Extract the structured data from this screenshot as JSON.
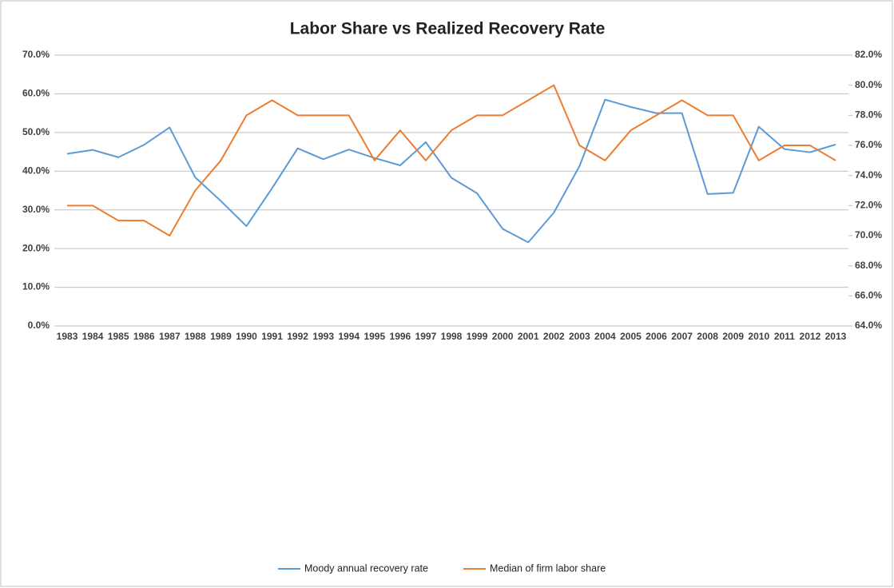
{
  "chart_data": {
    "type": "line",
    "title": "Labor Share vs Realized Recovery Rate",
    "categories": [
      "1983",
      "1984",
      "1985",
      "1986",
      "1987",
      "1988",
      "1989",
      "1990",
      "1991",
      "1992",
      "1993",
      "1994",
      "1995",
      "1996",
      "1997",
      "1998",
      "1999",
      "2000",
      "2001",
      "2002",
      "2003",
      "2004",
      "2005",
      "2006",
      "2007",
      "2008",
      "2009",
      "2010",
      "2011",
      "2012",
      "2013"
    ],
    "series": [
      {
        "name": "Moody annual recovery rate",
        "color": "#5b9bd5",
        "axis": "y",
        "values": [
          44.5,
          45.5,
          43.6,
          46.8,
          51.3,
          38.4,
          32.3,
          25.8,
          35.6,
          45.9,
          43.1,
          45.6,
          43.4,
          41.5,
          47.5,
          38.3,
          34.3,
          25.1,
          21.6,
          29.3,
          41.3,
          58.5,
          56.6,
          55.0,
          55.0,
          34.1,
          34.4,
          51.5,
          45.7,
          44.9,
          46.9
        ]
      },
      {
        "name": "Median of firm labor share",
        "color": "#ed7d31",
        "axis": "y2",
        "values": [
          72,
          72,
          71,
          71,
          70,
          73,
          75,
          78,
          79,
          78,
          78,
          78,
          75,
          77,
          75,
          77,
          78,
          78,
          79,
          80,
          76,
          75,
          77,
          78,
          79,
          78,
          78,
          75,
          76,
          76,
          75
        ]
      }
    ],
    "ylim": [
      0,
      70
    ],
    "yticks": [
      {
        "value": 0,
        "label": "0.0%"
      },
      {
        "value": 10,
        "label": "10.0%"
      },
      {
        "value": 20,
        "label": "20.0%"
      },
      {
        "value": 30,
        "label": "30.0%"
      },
      {
        "value": 40,
        "label": "40.0%"
      },
      {
        "value": 50,
        "label": "50.0%"
      },
      {
        "value": 60,
        "label": "60.0%"
      },
      {
        "value": 70,
        "label": "70.0%"
      }
    ],
    "y2lim": [
      64,
      82
    ],
    "y2ticks": [
      {
        "value": 64,
        "label": "64.0%"
      },
      {
        "value": 66,
        "label": "66.0%"
      },
      {
        "value": 68,
        "label": "68.0%"
      },
      {
        "value": 70,
        "label": "70.0%"
      },
      {
        "value": 72,
        "label": "72.0%"
      },
      {
        "value": 74,
        "label": "74.0%"
      },
      {
        "value": 76,
        "label": "76.0%"
      },
      {
        "value": 78,
        "label": "78.0%"
      },
      {
        "value": 80,
        "label": "80.0%"
      },
      {
        "value": 82,
        "label": "82.0%"
      }
    ],
    "grid": true,
    "legend": "bottom"
  }
}
